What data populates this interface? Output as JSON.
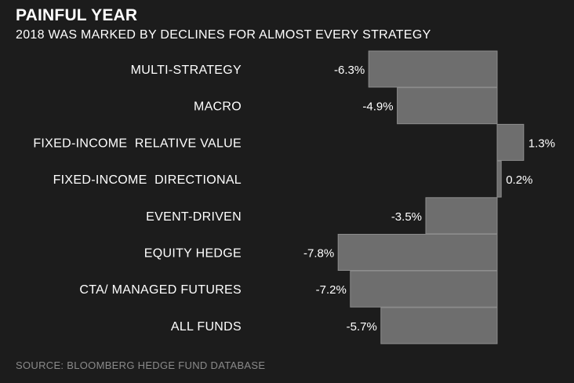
{
  "header": {
    "title": "PAINFUL YEAR",
    "subtitle": "2018 WAS MARKED BY DECLINES FOR ALMOST EVERY STRATEGY"
  },
  "footer": {
    "source": "SOURCE: BLOOMBERG HEDGE FUND DATABASE"
  },
  "colors": {
    "background": "#1c1c1c",
    "bar_fill": "#6e6e6e",
    "bar_stroke": "#8c8c8c",
    "text": "#ffffff",
    "source_text": "#8a8a8a"
  },
  "chart_data": {
    "type": "bar",
    "orientation": "horizontal",
    "title": "PAINFUL YEAR",
    "subtitle": "2018 WAS MARKED BY DECLINES FOR ALMOST EVERY STRATEGY",
    "categories": [
      "MULTI-STRATEGY",
      "MACRO",
      "FIXED-INCOME  RELATIVE VALUE",
      "FIXED-INCOME  DIRECTIONAL",
      "EVENT-DRIVEN",
      "EQUITY HEDGE",
      "CTA/ MANAGED FUTURES",
      "ALL FUNDS"
    ],
    "values": [
      -6.3,
      -4.9,
      1.3,
      0.2,
      -3.5,
      -7.8,
      -7.2,
      -5.7
    ],
    "value_labels": [
      "-6.3%",
      "-4.9%",
      "1.3%",
      "0.2%",
      "-3.5%",
      "-7.8%",
      "-7.2%",
      "-5.7%"
    ],
    "unit": "%",
    "grid": false,
    "legend": false
  }
}
